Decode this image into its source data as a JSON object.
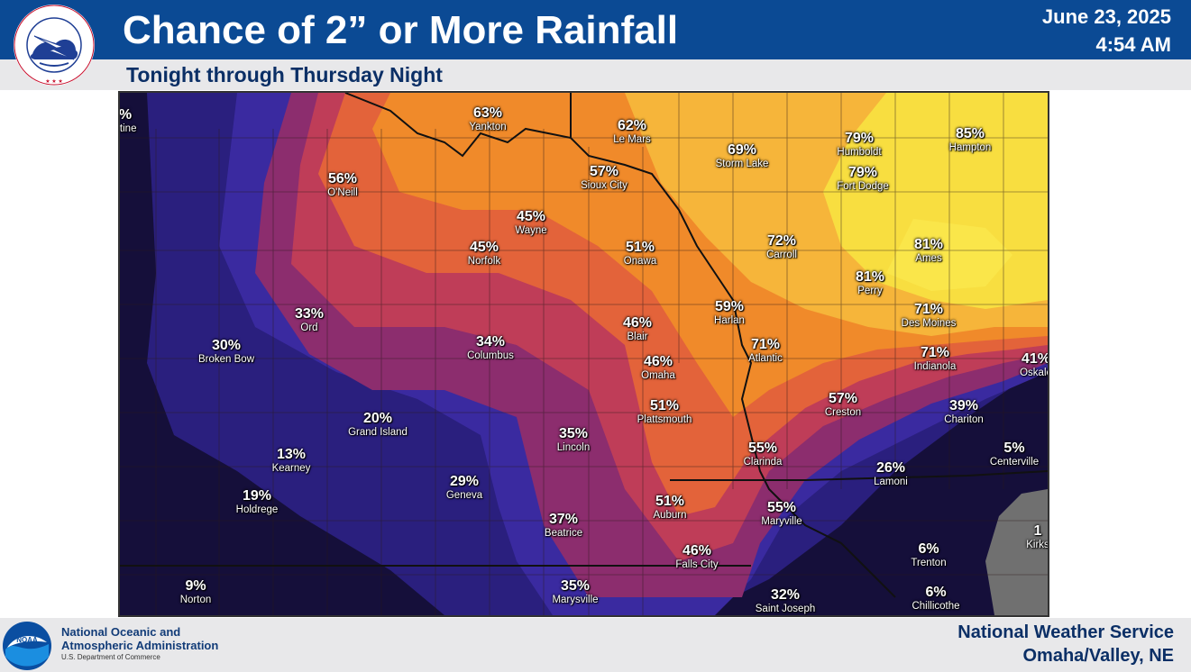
{
  "header": {
    "title": "Chance of 2” or More Rainfall",
    "subtitle": "Tonight through Thursday Night",
    "date": "June 23, 2025",
    "time": "4:54 AM",
    "logo_text": "NATIONAL WEATHER SERVICE"
  },
  "map": {
    "colors": {
      "very_low": "#150f3a",
      "low": "#241c6b",
      "low_mid": "#3b2a9a",
      "mid_low": "#8a2f6c",
      "mid": "#b83a5a",
      "mid_high": "#e0603a",
      "high": "#f08a2a",
      "higher": "#f6b23a",
      "highest": "#f8e040",
      "no_data": "#707070",
      "border": "#222222"
    },
    "cities": [
      {
        "pct": "63%",
        "name": "Yankton"
      },
      {
        "pct": "62%",
        "name": "Le Mars"
      },
      {
        "pct": "69%",
        "name": "Storm Lake"
      },
      {
        "pct": "79%",
        "name": "Humboldt"
      },
      {
        "pct": "85%",
        "name": "Hampton"
      },
      {
        "pct": "56%",
        "name": "O'Neill"
      },
      {
        "pct": "57%",
        "name": "Sioux City"
      },
      {
        "pct": "79%",
        "name": "Fort Dodge"
      },
      {
        "pct": "45%",
        "name": "Wayne"
      },
      {
        "pct": "45%",
        "name": "Norfolk"
      },
      {
        "pct": "51%",
        "name": "Onawa"
      },
      {
        "pct": "72%",
        "name": "Carroll"
      },
      {
        "pct": "81%",
        "name": "Ames"
      },
      {
        "pct": "81%",
        "name": "Perry"
      },
      {
        "pct": "33%",
        "name": "Ord"
      },
      {
        "pct": "59%",
        "name": "Harlan"
      },
      {
        "pct": "71%",
        "name": "Des Moines"
      },
      {
        "pct": "46%",
        "name": "Blair"
      },
      {
        "pct": "30%",
        "name": "Broken Bow"
      },
      {
        "pct": "34%",
        "name": "Columbus"
      },
      {
        "pct": "71%",
        "name": "Atlantic"
      },
      {
        "pct": "71%",
        "name": "Indianola"
      },
      {
        "pct": "46%",
        "name": "Omaha"
      },
      {
        "pct": "41%",
        "name": "Oskalo"
      },
      {
        "pct": "57%",
        "name": "Creston"
      },
      {
        "pct": "51%",
        "name": "Plattsmouth"
      },
      {
        "pct": "39%",
        "name": "Chariton"
      },
      {
        "pct": "20%",
        "name": "Grand Island"
      },
      {
        "pct": "35%",
        "name": "Lincoln"
      },
      {
        "pct": "13%",
        "name": "Kearney"
      },
      {
        "pct": "55%",
        "name": "Clarinda"
      },
      {
        "pct": "5%",
        "name": "Centerville"
      },
      {
        "pct": "26%",
        "name": "Lamoni"
      },
      {
        "pct": "29%",
        "name": "Geneva"
      },
      {
        "pct": "19%",
        "name": "Holdrege"
      },
      {
        "pct": "51%",
        "name": "Auburn"
      },
      {
        "pct": "55%",
        "name": "Maryville"
      },
      {
        "pct": "37%",
        "name": "Beatrice"
      },
      {
        "pct": "6%",
        "name": "Trenton"
      },
      {
        "pct": "46%",
        "name": "Falls City"
      },
      {
        "pct": "1",
        "name": "Kirks"
      },
      {
        "pct": "9%",
        "name": "Norton"
      },
      {
        "pct": "35%",
        "name": "Marysville"
      },
      {
        "pct": "32%",
        "name": "Saint Joseph"
      },
      {
        "pct": "6%",
        "name": "Chillicothe"
      },
      {
        "pct": "%",
        "name": "ntine"
      }
    ]
  },
  "footer": {
    "agency_line1": "National Oceanic and",
    "agency_line2": "Atmospheric Administration",
    "dept": "U.S. Department of Commerce",
    "noaa_logo_text": "NOAA",
    "service": "National Weather Service",
    "office": "Omaha/Valley, NE"
  }
}
